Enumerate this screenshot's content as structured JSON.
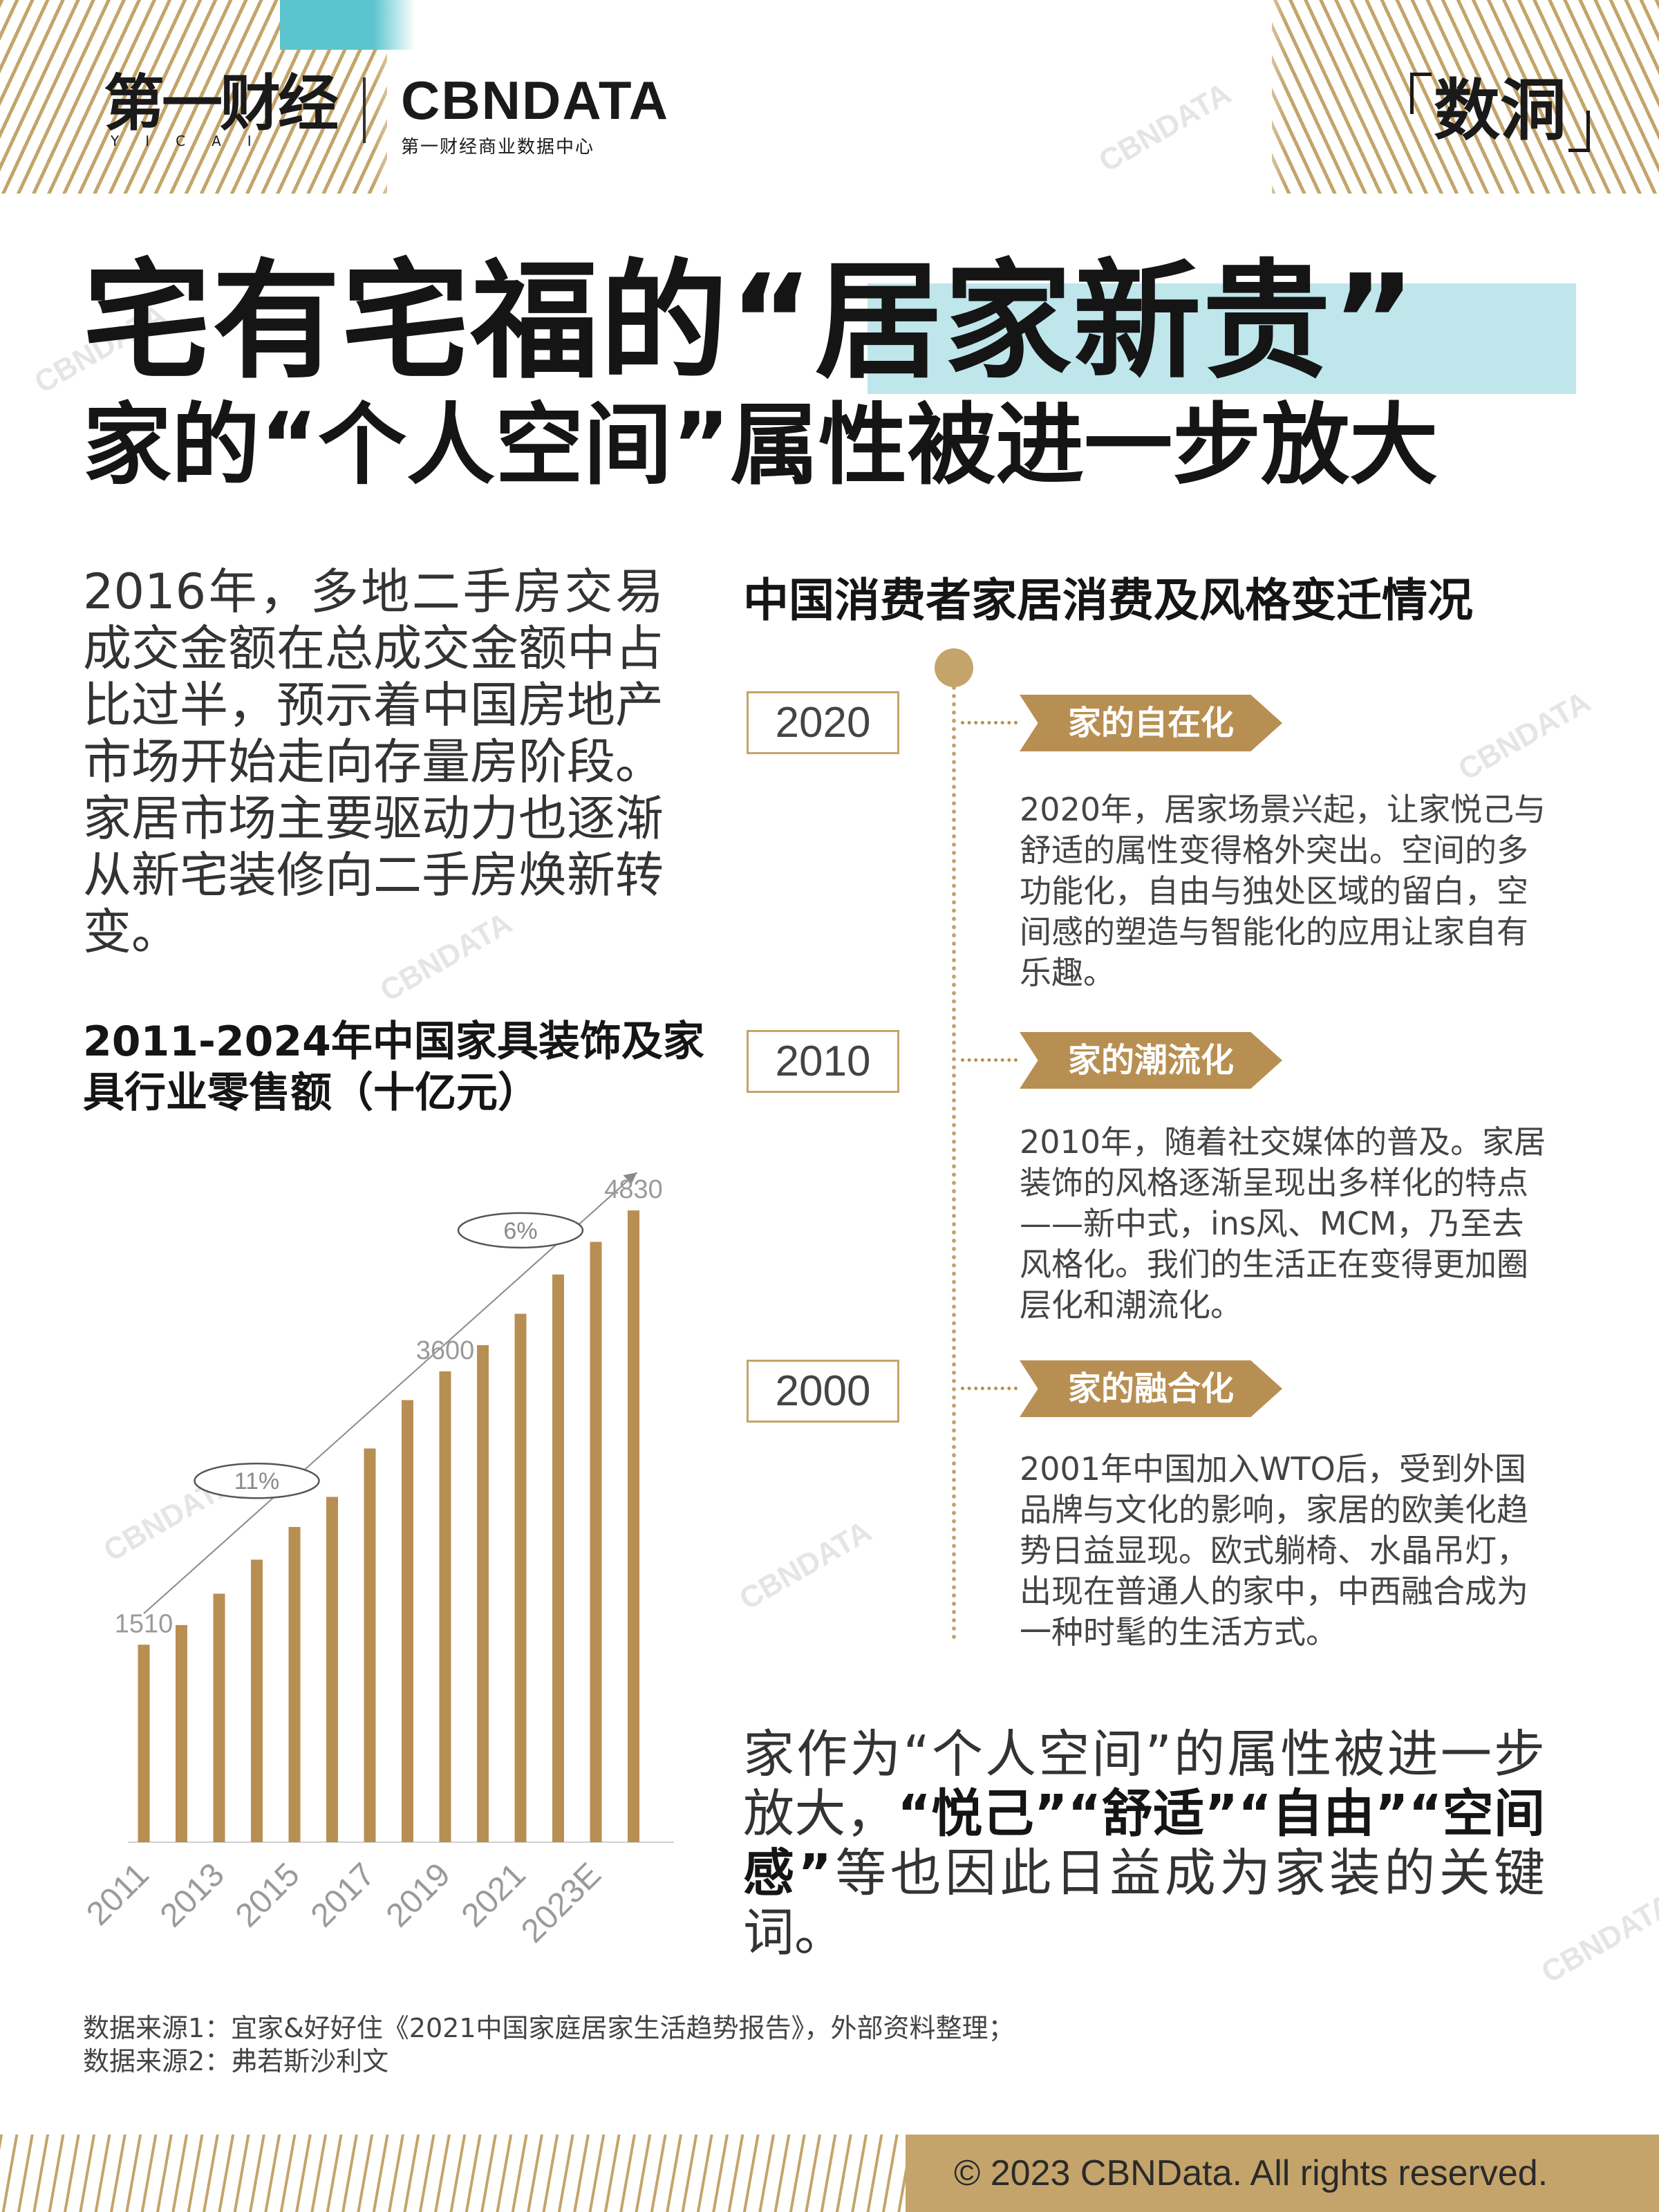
{
  "header": {
    "yicai_logo": "第一财经",
    "yicai_sub": "YICAI",
    "cbn_logo": "CBNDATA",
    "cbn_sub": "第一财经商业数据中心",
    "column_logo": "数洞"
  },
  "title": {
    "line1": "宅有宅福的“居家新贵”",
    "line2": "家的“个人空间”属性被进一步放大"
  },
  "intro": "2016年，多地二手房交易成交金额在总成交金额中占比过半，预示着中国房地产市场开始走向存量房阶段。家居市场主要驱动力也逐渐从新宅装修向二手房焕新转变。",
  "chart_title": "2011-2024年中国家具装饰及家具行业零售额（十亿元）",
  "chart_data": {
    "type": "bar",
    "title": "2011-2024年中国家具装饰及家具行业零售额（十亿元）",
    "categories": [
      "2011",
      "2012",
      "2013",
      "2014",
      "2015",
      "2016",
      "2017",
      "2018",
      "2019",
      "2020",
      "2021",
      "2022",
      "2023E",
      "2024E"
    ],
    "tick_labels": [
      "2011",
      "2013",
      "2015",
      "2017",
      "2019",
      "2021",
      "2023E"
    ],
    "values": [
      1510,
      1660,
      1900,
      2160,
      2410,
      2640,
      3010,
      3380,
      3600,
      3800,
      4040,
      4340,
      4590,
      4830
    ],
    "data_labels": {
      "2011": "1510",
      "2019": "3600",
      "2024E": "4830"
    },
    "growth_annotations": [
      "11%",
      "6%"
    ],
    "ylim": [
      0,
      5100
    ],
    "color": "#b88f52"
  },
  "timeline": {
    "title": "中国消费者家居消费及风格变迁情况",
    "items": [
      {
        "year": "2020",
        "tag": "家的自在化",
        "text": "2020年，居家场景兴起，让家悦己与舒适的属性变得格外突出。空间的多功能化，自由与独处区域的留白，空间感的塑造与智能化的应用让家自有乐趣。"
      },
      {
        "year": "2010",
        "tag": "家的潮流化",
        "text": "2010年，随着社交媒体的普及。家居装饰的风格逐渐呈现出多样化的特点——新中式，ins风、MCM，乃至去风格化。我们的生活正在变得更加圈层化和潮流化。"
      },
      {
        "year": "2000",
        "tag": "家的融合化",
        "text": "2001年中国加入WTO后，受到外国品牌与文化的影响，家居的欧美化趋势日益显现。欧式躺椅、水晶吊灯，出现在普通人的家中，中西融合成为一种时髦的生活方式。"
      }
    ]
  },
  "conclusion": {
    "pre": "家作为“个人空间”的属性被进一步放大，",
    "bold": "“悦己”“舒适”“自由”“空间感”",
    "post": "等也因此日益成为家装的关键词。"
  },
  "sources": {
    "line1": "数据来源1：宜家&好好住《2021中国家庭居家生活趋势报告》，外部资料整理；",
    "line2": "数据来源2：弗若斯沙利文"
  },
  "footer": "© 2023 CBNData. All rights reserved.",
  "watermark": "CBNDATA",
  "colors": {
    "gold": "#b88f52",
    "teal": "#5bc5ce",
    "highlight": "#bfe6ea"
  }
}
